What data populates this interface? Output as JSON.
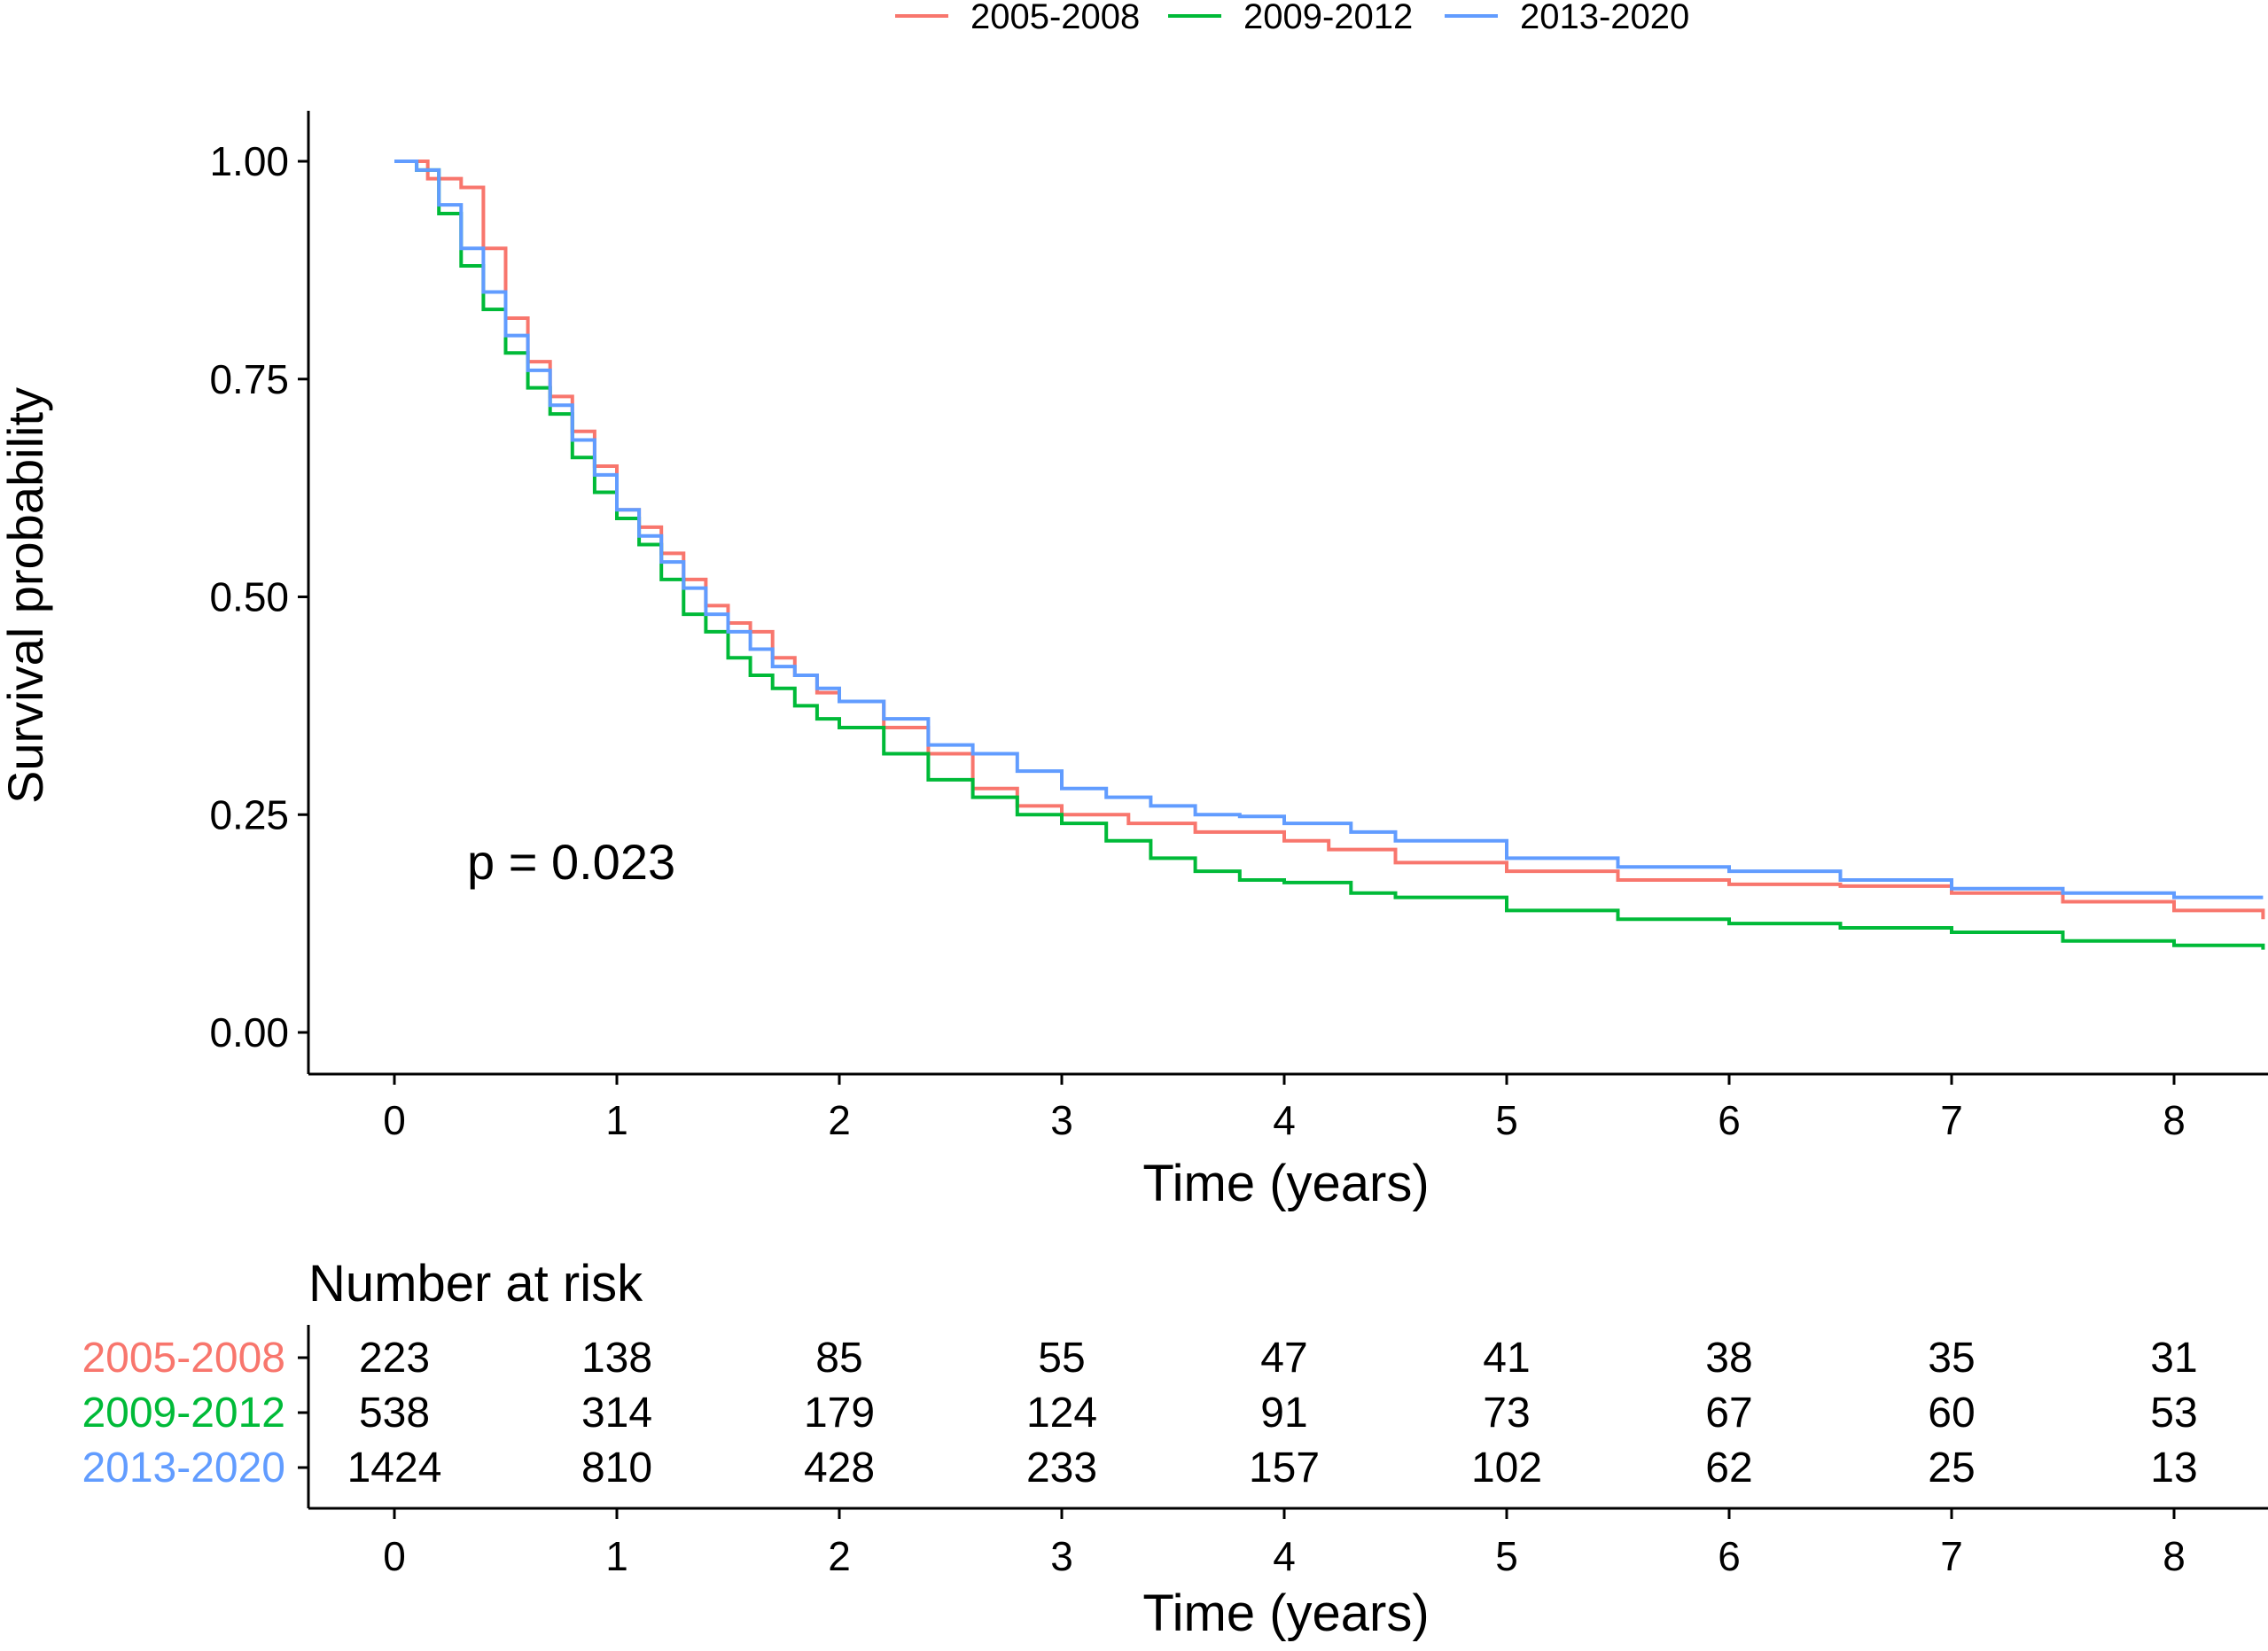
{
  "chart_data": {
    "type": "line",
    "subtype": "kaplan-meier",
    "title": "",
    "xlabel": "Time (years)",
    "ylabel": "Survival probability",
    "xlim": [
      0,
      8.4
    ],
    "ylim": [
      0,
      1
    ],
    "xticks": [
      "0",
      "1",
      "2",
      "3",
      "4",
      "5",
      "6",
      "7",
      "8"
    ],
    "yticks": [
      "0.00",
      "0.25",
      "0.50",
      "0.75",
      "1.00"
    ],
    "grid": false,
    "legend_position": "top",
    "annotation": "p = 0.023",
    "series": [
      {
        "name": "2005-2008",
        "color": "#F8766D",
        "x": [
          0,
          0.1,
          0.15,
          0.2,
          0.3,
          0.4,
          0.5,
          0.6,
          0.7,
          0.8,
          0.9,
          1.0,
          1.1,
          1.2,
          1.3,
          1.4,
          1.5,
          1.6,
          1.7,
          1.8,
          1.9,
          2.0,
          2.2,
          2.4,
          2.6,
          2.8,
          3.0,
          3.3,
          3.6,
          4.0,
          4.2,
          4.5,
          5.0,
          5.5,
          6.0,
          6.5,
          7.0,
          7.3,
          7.5,
          8.0,
          8.3,
          8.4
        ],
        "y": [
          1.0,
          1.0,
          0.98,
          0.98,
          0.97,
          0.9,
          0.82,
          0.77,
          0.73,
          0.69,
          0.65,
          0.6,
          0.58,
          0.55,
          0.52,
          0.49,
          0.47,
          0.46,
          0.43,
          0.41,
          0.39,
          0.38,
          0.35,
          0.32,
          0.28,
          0.26,
          0.25,
          0.24,
          0.23,
          0.22,
          0.21,
          0.195,
          0.185,
          0.175,
          0.17,
          0.168,
          0.16,
          0.16,
          0.15,
          0.14,
          0.14,
          0.13
        ]
      },
      {
        "name": "2009-2012",
        "color": "#00BA38",
        "x": [
          0,
          0.1,
          0.2,
          0.3,
          0.4,
          0.5,
          0.6,
          0.7,
          0.8,
          0.9,
          1.0,
          1.1,
          1.2,
          1.3,
          1.4,
          1.5,
          1.6,
          1.7,
          1.8,
          1.9,
          2.0,
          2.2,
          2.4,
          2.6,
          2.8,
          3.0,
          3.2,
          3.4,
          3.6,
          3.8,
          4.0,
          4.3,
          4.5,
          5.0,
          5.5,
          6.0,
          6.5,
          7.0,
          7.5,
          8.0,
          8.4
        ],
        "y": [
          1.0,
          0.99,
          0.94,
          0.88,
          0.83,
          0.78,
          0.74,
          0.71,
          0.66,
          0.62,
          0.59,
          0.56,
          0.52,
          0.48,
          0.46,
          0.43,
          0.41,
          0.395,
          0.375,
          0.36,
          0.35,
          0.32,
          0.29,
          0.27,
          0.25,
          0.24,
          0.22,
          0.2,
          0.185,
          0.175,
          0.172,
          0.16,
          0.155,
          0.14,
          0.13,
          0.125,
          0.12,
          0.115,
          0.105,
          0.1,
          0.095
        ]
      },
      {
        "name": "2013-2020",
        "color": "#619CFF",
        "x": [
          0,
          0.1,
          0.2,
          0.3,
          0.4,
          0.5,
          0.6,
          0.7,
          0.8,
          0.9,
          1.0,
          1.1,
          1.2,
          1.3,
          1.4,
          1.5,
          1.6,
          1.7,
          1.8,
          1.9,
          2.0,
          2.2,
          2.4,
          2.6,
          2.8,
          3.0,
          3.2,
          3.4,
          3.6,
          3.8,
          4.0,
          4.3,
          4.5,
          5.0,
          5.5,
          6.0,
          6.5,
          7.0,
          7.5,
          8.0,
          8.4
        ],
        "y": [
          1.0,
          0.99,
          0.95,
          0.9,
          0.85,
          0.8,
          0.76,
          0.72,
          0.68,
          0.64,
          0.6,
          0.57,
          0.54,
          0.51,
          0.48,
          0.46,
          0.44,
          0.42,
          0.41,
          0.395,
          0.38,
          0.36,
          0.33,
          0.32,
          0.3,
          0.28,
          0.27,
          0.26,
          0.25,
          0.248,
          0.24,
          0.23,
          0.22,
          0.2,
          0.19,
          0.185,
          0.175,
          0.165,
          0.16,
          0.155,
          0.155
        ]
      }
    ],
    "risk_table": {
      "title": "Number at risk",
      "xlabel": "Time (years)",
      "time_points": [
        "0",
        "1",
        "2",
        "3",
        "4",
        "5",
        "6",
        "7",
        "8"
      ],
      "rows": [
        {
          "label": "2005-2008",
          "color": "#F8766D",
          "values": [
            "223",
            "138",
            "85",
            "55",
            "47",
            "41",
            "38",
            "35",
            "31"
          ]
        },
        {
          "label": "2009-2012",
          "color": "#00BA38",
          "values": [
            "538",
            "314",
            "179",
            "124",
            "91",
            "73",
            "67",
            "60",
            "53"
          ]
        },
        {
          "label": "2013-2020",
          "color": "#619CFF",
          "values": [
            "1424",
            "810",
            "428",
            "233",
            "157",
            "102",
            "62",
            "25",
            "13"
          ]
        }
      ]
    }
  }
}
